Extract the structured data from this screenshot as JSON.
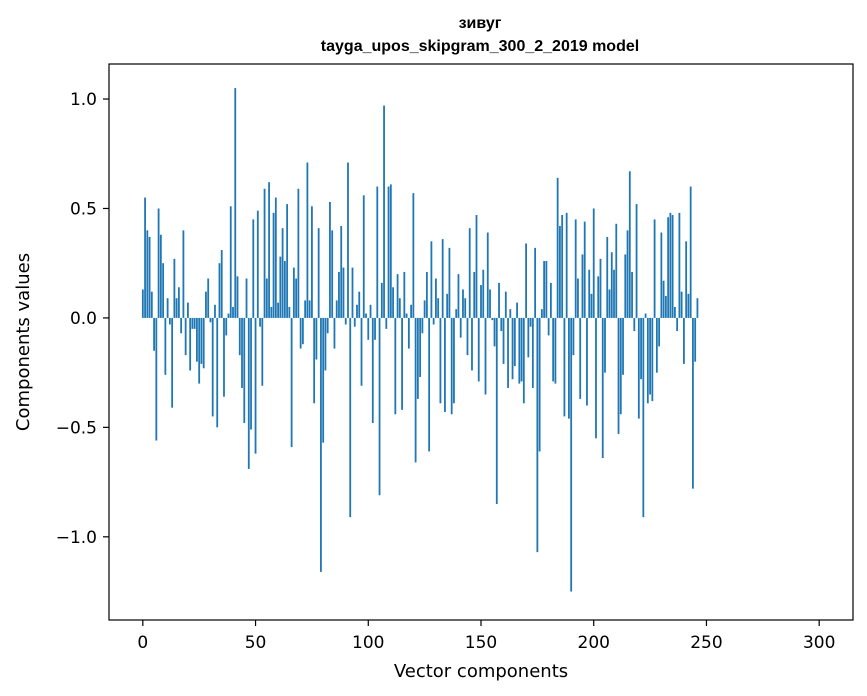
{
  "chart_data": {
    "type": "bar",
    "title_line1": "зивуг",
    "title_line2": "tayga_upos_skipgram_300_2_2019 model",
    "xlabel": "Vector components",
    "ylabel": "Components values",
    "xlim": [
      -15,
      315
    ],
    "ylim": [
      -1.38,
      1.16
    ],
    "xticks": [
      0,
      50,
      100,
      150,
      200,
      250,
      300
    ],
    "xtick_labels": [
      "0",
      "50",
      "100",
      "150",
      "200",
      "250",
      "300"
    ],
    "yticks": [
      -1.0,
      -0.5,
      0.0,
      0.5,
      1.0
    ],
    "ytick_labels": [
      "−1.0",
      "−0.5",
      "0.0",
      "0.5",
      "1.0"
    ],
    "bar_color": "#1f77b4",
    "grid": false,
    "values": [
      0.13,
      0.55,
      0.4,
      0.37,
      0.12,
      -0.15,
      -0.56,
      0.5,
      0.38,
      0.25,
      -0.26,
      0.09,
      -0.03,
      -0.41,
      0.27,
      0.09,
      0.14,
      -0.07,
      0.4,
      -0.17,
      0.07,
      -0.24,
      -0.05,
      -0.05,
      -0.2,
      -0.3,
      -0.21,
      -0.23,
      0.12,
      0.18,
      -0.02,
      -0.45,
      0.06,
      -0.5,
      0.25,
      0.31,
      -0.36,
      -0.08,
      0.02,
      0.51,
      0.05,
      1.05,
      0.19,
      -0.17,
      -0.32,
      -0.48,
      0.18,
      -0.69,
      -0.51,
      0.45,
      -0.62,
      0.49,
      -0.04,
      -0.31,
      0.59,
      0.18,
      0.62,
      0.05,
      0.48,
      0.55,
      0.07,
      0.28,
      0.41,
      0.26,
      0.52,
      0.05,
      -0.59,
      0.23,
      0.18,
      0.59,
      -0.14,
      -0.12,
      0.08,
      0.71,
      0.08,
      0.51,
      -0.39,
      -0.19,
      0.41,
      -1.16,
      -0.57,
      -0.24,
      -0.07,
      0.53,
      0.4,
      -0.14,
      0.08,
      0.21,
      0.42,
      0.23,
      -0.03,
      0.71,
      -0.91,
      0.23,
      -0.04,
      0.06,
      0.12,
      -0.31,
      0.56,
      0.02,
      -0.1,
      0.06,
      -0.48,
      -0.1,
      0.6,
      -0.81,
      0.16,
      0.97,
      -0.05,
      0.6,
      0.61,
      0.14,
      -0.44,
      0.2,
      0.09,
      -0.42,
      0.21,
      0.02,
      -0.14,
      0.06,
      0.57,
      -0.66,
      -0.37,
      -0.27,
      -0.07,
      0.08,
      0.21,
      -0.61,
      0.35,
      -0.03,
      0.18,
      0.09,
      -0.39,
      0.36,
      -0.43,
      0.11,
      0.32,
      -0.44,
      -0.39,
      0.04,
      0.2,
      -0.09,
      0.13,
      0.09,
      -0.17,
      0.41,
      -0.24,
      0.21,
      0.47,
      -0.29,
      0.15,
      0.22,
      -0.35,
      0.39,
      0.13,
      -0.01,
      -0.13,
      -0.85,
      0.16,
      -0.06,
      -0.21,
      0.12,
      -0.32,
      0.04,
      -0.28,
      -0.22,
      0.07,
      -0.3,
      -0.29,
      -0.39,
      0.34,
      -0.18,
      -0.04,
      -0.32,
      0.32,
      -1.07,
      -0.61,
      0.04,
      0.26,
      0.26,
      -0.08,
      0.16,
      -0.29,
      -0.3,
      0.64,
      0.42,
      0.47,
      -0.45,
      0.48,
      -0.46,
      -1.25,
      -0.17,
      0.45,
      0.18,
      -0.37,
      0.29,
      0.44,
      -0.4,
      0.22,
      0.11,
      0.5,
      -0.55,
      0.19,
      0.27,
      -0.64,
      -0.25,
      0.37,
      0.13,
      0.3,
      0.22,
      0.43,
      -0.53,
      -0.44,
      -0.26,
      0.29,
      0.4,
      0.67,
      0.21,
      -0.06,
      0.52,
      -0.46,
      -0.28,
      -0.91,
      0.02,
      -0.39,
      -0.35,
      -0.38,
      0.45,
      -0.25,
      -0.13,
      0.39,
      0.17,
      0.1,
      0.46,
      0.48,
      0.47,
      0.05,
      -0.06,
      0.48,
      0.12,
      -0.21,
      0.35,
      0.11,
      0.6,
      -0.78,
      -0.2,
      0.09
    ]
  }
}
